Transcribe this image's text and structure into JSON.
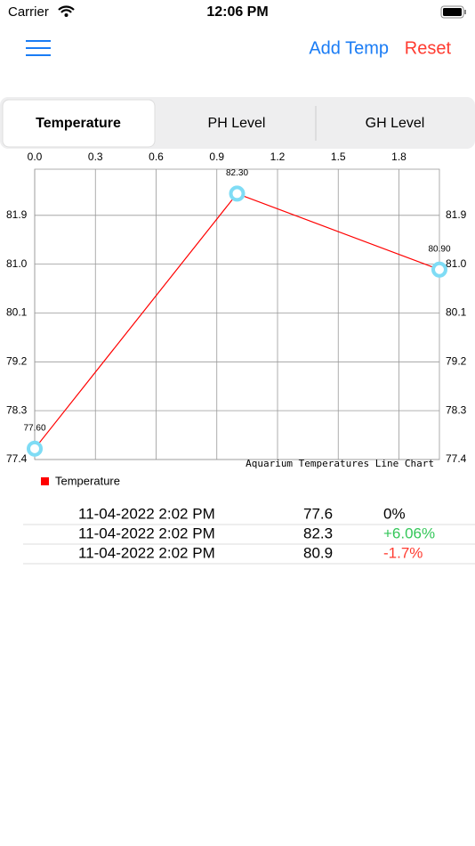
{
  "status_bar": {
    "carrier": "Carrier",
    "time": "12:06 PM"
  },
  "nav": {
    "add": "Add Temp",
    "reset": "Reset"
  },
  "segments": [
    "Temperature",
    "PH Level",
    "GH Level"
  ],
  "chart_data": {
    "type": "line",
    "description": "Aquarium Temperatures Line Chart",
    "x": [
      0,
      1,
      2
    ],
    "series": [
      {
        "name": "Temperature",
        "color": "#ff0000",
        "marker_color": "#7fdcf5",
        "values": [
          77.6,
          82.3,
          80.9
        ],
        "value_labels": [
          "77.60",
          "82.30",
          "80.90"
        ]
      }
    ],
    "xlim": [
      0,
      2
    ],
    "xticks": [
      {
        "value": 0,
        "label": "0.0"
      },
      0.3,
      0.6,
      0.9,
      1.2,
      1.5,
      1.8
    ],
    "ylim": [
      77.4,
      82.75
    ],
    "yticks": [
      77.4,
      78.3,
      79.2,
      80.1,
      {
        "value": 81.0,
        "label": "81.0"
      },
      81.9
    ],
    "grid": true
  },
  "table": {
    "rows": [
      {
        "date": "11-04-2022 2:02 PM",
        "value": 77.6,
        "change": "0%",
        "color": "#000000"
      },
      {
        "date": "11-04-2022 2:02 PM",
        "value": 82.3,
        "change": "+6.06%",
        "color": "#34c759"
      },
      {
        "date": "11-04-2022 2:02 PM",
        "value": 80.9,
        "change": "-1.7%",
        "color": "#ff3b30"
      }
    ]
  }
}
